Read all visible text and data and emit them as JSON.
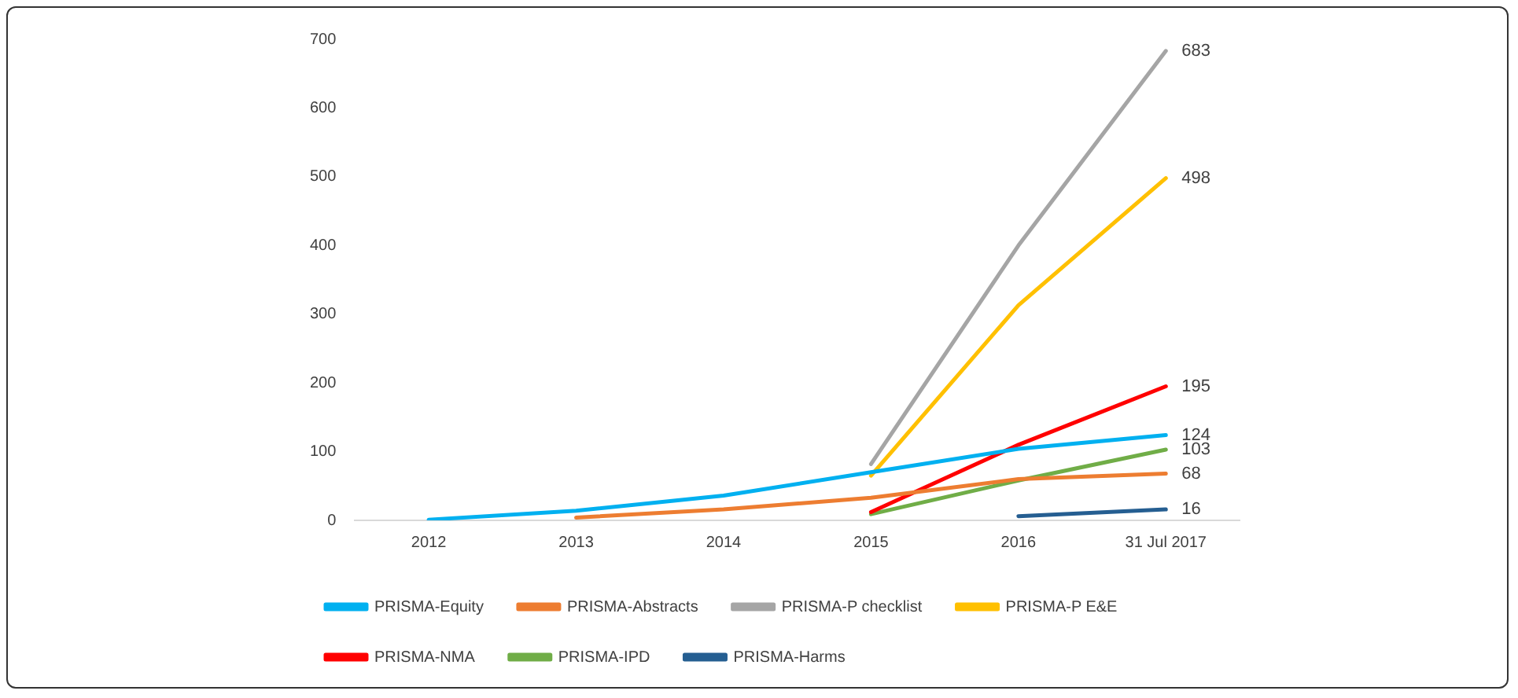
{
  "chart_data": {
    "type": "line",
    "categories": [
      "2012",
      "2013",
      "2014",
      "2015",
      "2016",
      "31 Jul 2017"
    ],
    "series": [
      {
        "name": "PRISMA-Equity",
        "color": "#00b0f0",
        "values": [
          1,
          14,
          36,
          70,
          104,
          124
        ],
        "value_labels": [
          null,
          null,
          null,
          null,
          null,
          "124"
        ]
      },
      {
        "name": "PRISMA-Abstracts",
        "color": "#ed7d31",
        "values": [
          null,
          4,
          16,
          33,
          60,
          68
        ],
        "value_labels": [
          null,
          null,
          null,
          null,
          null,
          "68"
        ]
      },
      {
        "name": "PRISMA-P checklist",
        "color": "#a5a5a5",
        "values": [
          null,
          null,
          null,
          82,
          400,
          683
        ],
        "value_labels": [
          null,
          null,
          null,
          null,
          null,
          "683"
        ]
      },
      {
        "name": "PRISMA-P E&E",
        "color": "#ffc000",
        "values": [
          null,
          null,
          null,
          65,
          313,
          498
        ],
        "value_labels": [
          null,
          null,
          null,
          null,
          null,
          "498"
        ]
      },
      {
        "name": "PRISMA-NMA",
        "color": "#ff0000",
        "values": [
          null,
          null,
          null,
          12,
          110,
          195
        ],
        "value_labels": [
          null,
          null,
          null,
          null,
          null,
          "195"
        ]
      },
      {
        "name": "PRISMA-IPD",
        "color": "#70ad47",
        "values": [
          null,
          null,
          null,
          9,
          58,
          103
        ],
        "value_labels": [
          null,
          null,
          null,
          null,
          null,
          "103"
        ]
      },
      {
        "name": "PRISMA-Harms",
        "color": "#255e91",
        "values": [
          null,
          null,
          null,
          null,
          6,
          16
        ],
        "value_labels": [
          null,
          null,
          null,
          null,
          null,
          "16"
        ]
      }
    ],
    "ylim": [
      0,
      700
    ],
    "yticks": [
      0,
      100,
      200,
      300,
      400,
      500,
      600,
      700
    ],
    "grid": false,
    "legend": "bottom",
    "marker": "none",
    "line_style": "solid"
  }
}
